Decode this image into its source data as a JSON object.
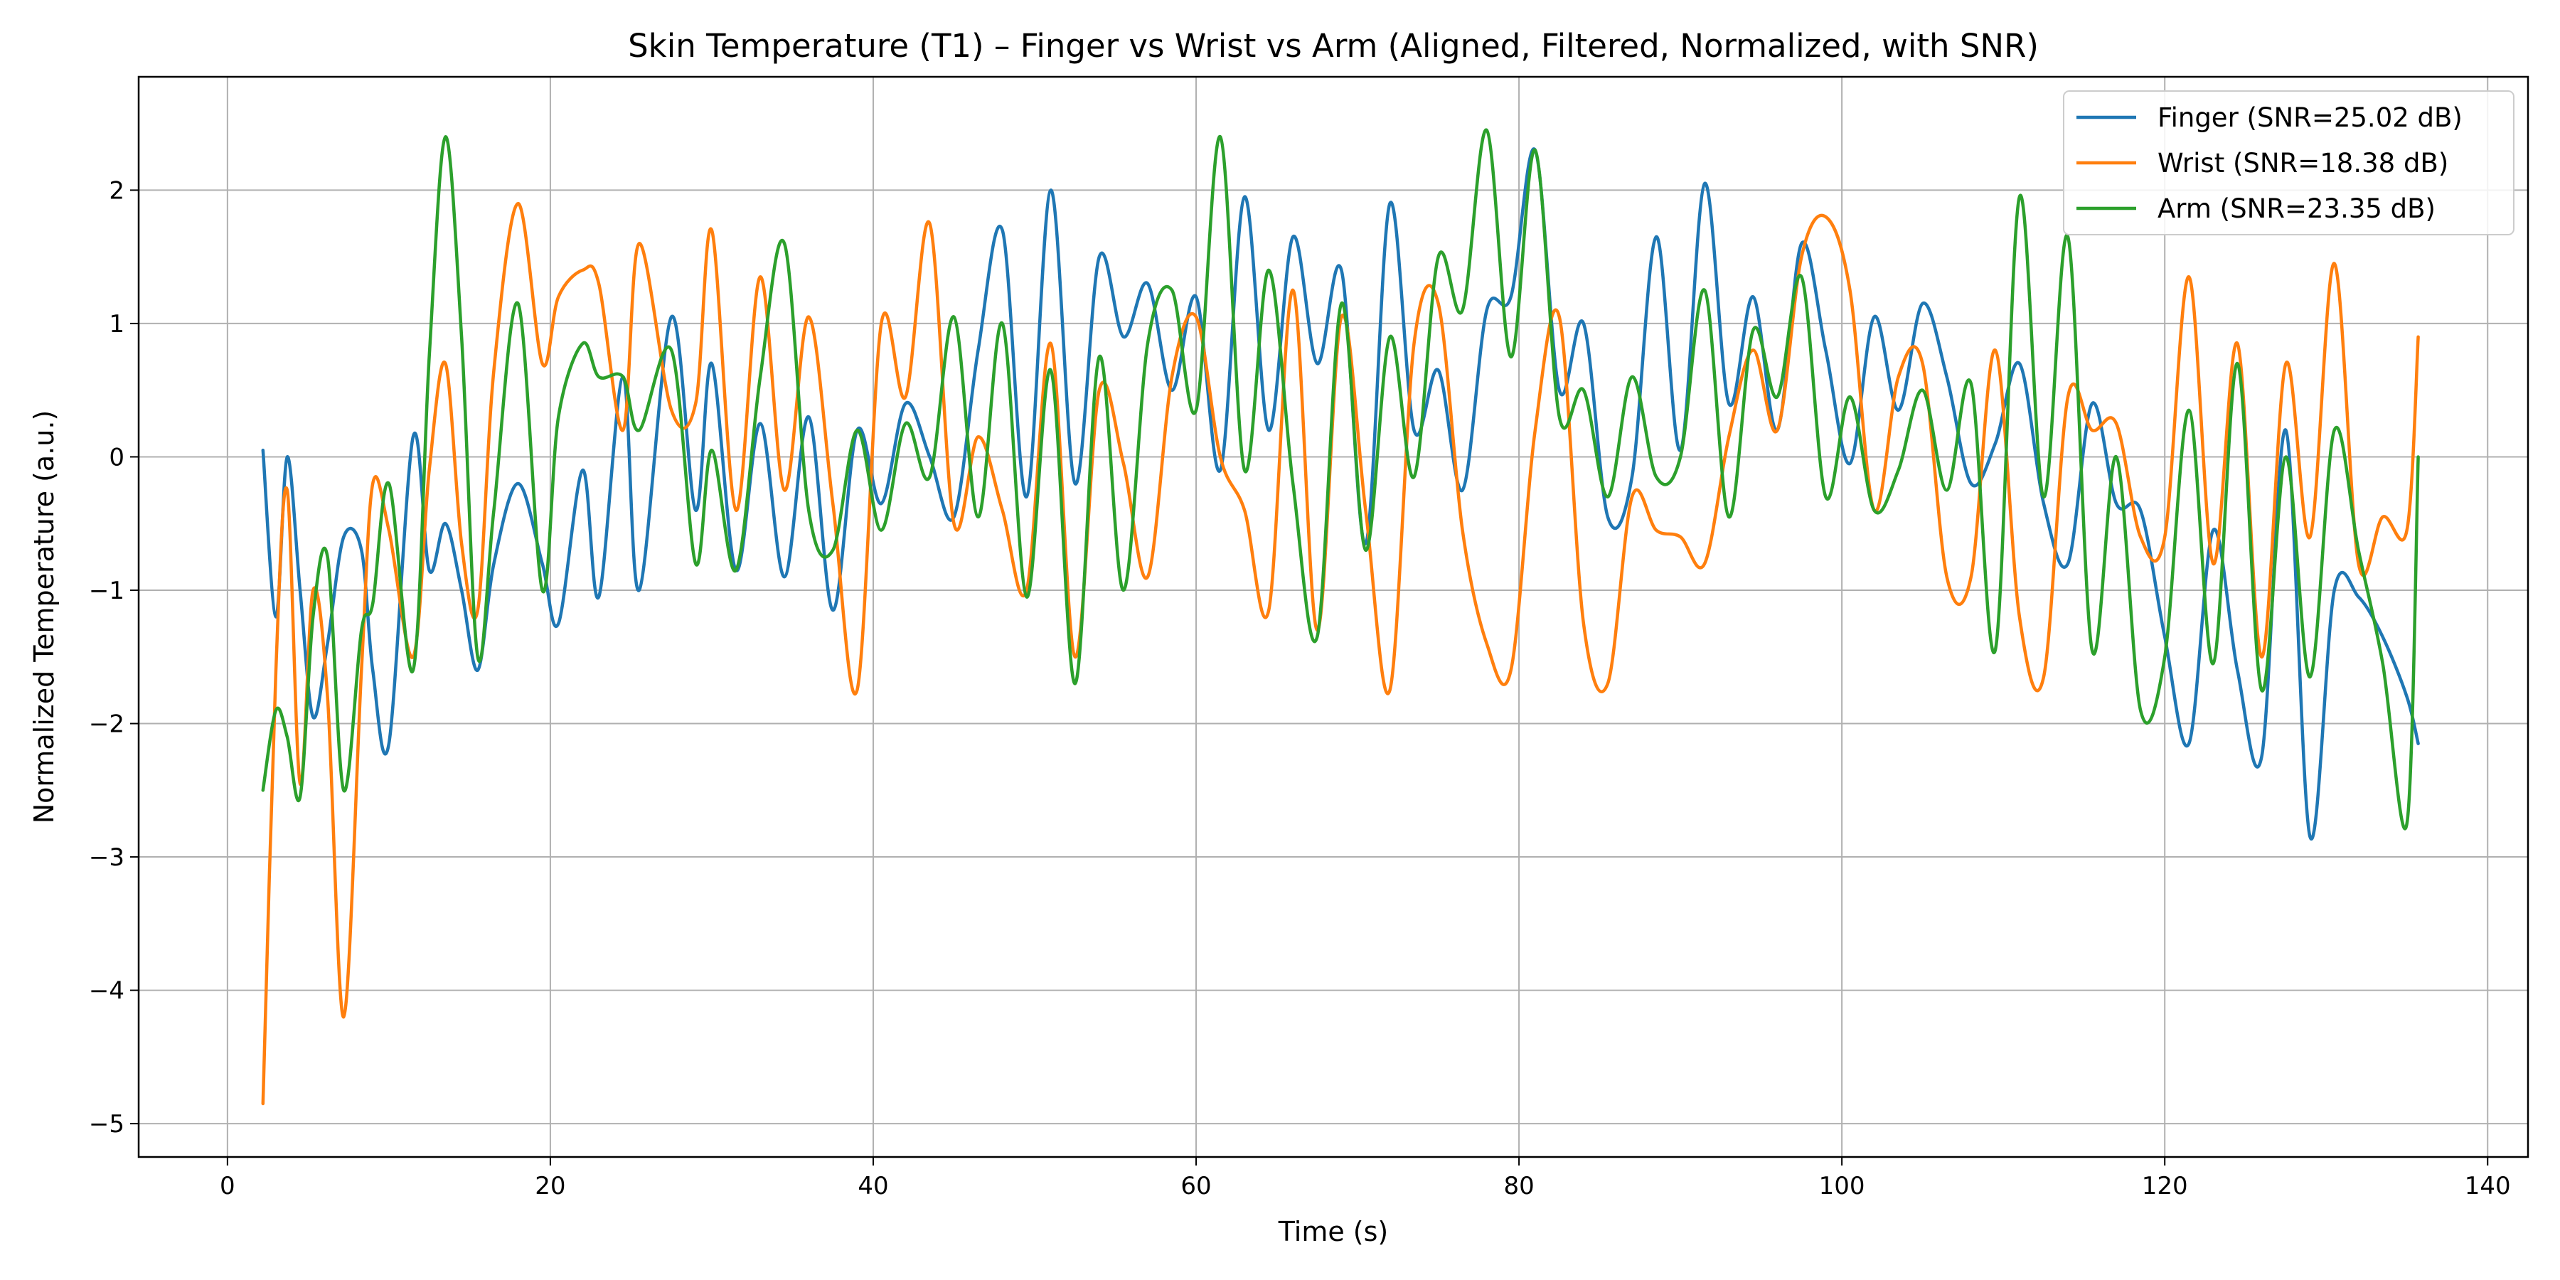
{
  "chart_data": {
    "type": "line",
    "title": "Skin Temperature (T1) – Finger vs Wrist vs Arm (Aligned, Filtered, Normalized, with SNR)",
    "xlabel": "Time (s)",
    "ylabel": "Normalized Temperature (a.u.)",
    "xlim": [
      -5.5,
      142.5
    ],
    "ylim": [
      -5.25,
      2.85
    ],
    "x_ticks": [
      0,
      20,
      40,
      60,
      80,
      100,
      120,
      140
    ],
    "x_tick_labels": [
      "0",
      "20",
      "40",
      "60",
      "80",
      "100",
      "120",
      "140"
    ],
    "y_ticks": [
      -5,
      -4,
      -3,
      -2,
      -1,
      0,
      1,
      2
    ],
    "y_tick_labels": [
      "−5",
      "−4",
      "−3",
      "−2",
      "−1",
      "0",
      "1",
      "2"
    ],
    "grid": true,
    "legend_position": "top-right",
    "x": [
      2.2,
      3.0,
      3.7,
      4.5,
      5.3,
      6.2,
      7.2,
      8.3,
      9.0,
      10.0,
      11.5,
      12.5,
      13.5,
      14.5,
      15.5,
      16.5,
      18.0,
      19.5,
      20.5,
      22.0,
      23.0,
      24.5,
      25.5,
      27.5,
      29.0,
      30.0,
      31.5,
      33.0,
      34.5,
      36.0,
      37.5,
      39.0,
      40.5,
      42.0,
      43.5,
      45.0,
      46.5,
      48.0,
      49.5,
      51.0,
      52.5,
      54.0,
      55.5,
      57.0,
      58.5,
      60.0,
      61.5,
      63.0,
      64.5,
      66.0,
      67.5,
      69.0,
      70.5,
      72.0,
      73.5,
      75.0,
      76.5,
      78.0,
      79.5,
      81.0,
      82.5,
      84.0,
      85.5,
      87.0,
      88.5,
      90.0,
      91.5,
      93.0,
      94.5,
      96.0,
      97.5,
      99.0,
      100.5,
      102.0,
      103.5,
      105.0,
      106.5,
      108.0,
      109.5,
      111.0,
      112.5,
      114.0,
      115.5,
      117.0,
      118.5,
      120.0,
      121.5,
      123.0,
      124.5,
      126.0,
      127.5,
      129.0,
      130.5,
      132.0,
      133.5,
      135.0,
      135.7
    ],
    "series": [
      {
        "name": "Finger (SNR=25.02 dB)",
        "color": "#1f77b4",
        "values": [
          0.05,
          -1.2,
          0.0,
          -1.0,
          -1.95,
          -1.4,
          -0.6,
          -0.7,
          -1.6,
          -2.15,
          0.15,
          -0.85,
          -0.5,
          -1.0,
          -1.6,
          -0.8,
          -0.2,
          -0.8,
          -1.25,
          -0.1,
          -1.05,
          0.6,
          -1.0,
          1.05,
          -0.4,
          0.7,
          -0.85,
          0.25,
          -0.9,
          0.3,
          -1.15,
          0.2,
          -0.35,
          0.4,
          0.0,
          -0.45,
          0.8,
          1.7,
          -0.3,
          2.0,
          -0.2,
          1.5,
          0.9,
          1.3,
          0.5,
          1.2,
          -0.1,
          1.95,
          0.2,
          1.65,
          0.7,
          1.4,
          -0.65,
          1.9,
          0.2,
          0.65,
          -0.25,
          1.1,
          1.2,
          2.3,
          0.5,
          1.0,
          -0.45,
          -0.15,
          1.65,
          0.05,
          2.05,
          0.4,
          1.2,
          0.2,
          1.6,
          0.8,
          -0.05,
          1.05,
          0.35,
          1.15,
          0.6,
          -0.2,
          0.1,
          0.7,
          -0.35,
          -0.8,
          0.4,
          -0.35,
          -0.4,
          -1.35,
          -2.15,
          -0.55,
          -1.6,
          -2.25,
          0.2,
          -2.85,
          -1.0,
          -1.05,
          -1.35,
          -1.8,
          -2.15
        ]
      },
      {
        "name": "Wrist (SNR=18.38 dB)",
        "color": "#ff7f0e",
        "values": [
          -4.85,
          -1.6,
          -0.25,
          -2.45,
          -1.0,
          -1.8,
          -4.2,
          -1.6,
          -0.2,
          -0.55,
          -1.5,
          -0.1,
          0.7,
          -0.65,
          -1.15,
          0.65,
          1.9,
          0.7,
          1.2,
          1.4,
          1.3,
          0.2,
          1.6,
          0.35,
          0.4,
          1.7,
          -0.4,
          1.35,
          -0.25,
          1.05,
          -0.35,
          -1.75,
          1.0,
          0.45,
          1.75,
          -0.5,
          0.15,
          -0.4,
          -1.0,
          0.85,
          -1.5,
          0.5,
          -0.05,
          -0.9,
          0.6,
          1.05,
          0.0,
          -0.4,
          -1.15,
          1.25,
          -1.3,
          1.05,
          -0.4,
          -1.75,
          0.85,
          1.15,
          -0.55,
          -1.4,
          -1.6,
          0.2,
          1.05,
          -1.25,
          -1.7,
          -0.3,
          -0.55,
          -0.6,
          -0.8,
          0.15,
          0.8,
          0.2,
          1.5,
          1.8,
          1.25,
          -0.4,
          0.6,
          0.7,
          -0.9,
          -0.9,
          0.8,
          -1.2,
          -1.65,
          0.45,
          0.2,
          0.25,
          -0.6,
          -0.6,
          1.35,
          -0.8,
          0.85,
          -1.5,
          0.7,
          -0.6,
          1.45,
          -0.8,
          -0.45,
          -0.55,
          0.9
        ]
      },
      {
        "name": "Arm (SNR=23.35 dB)",
        "color": "#2ca02c",
        "values": [
          -2.5,
          -1.9,
          -2.1,
          -2.55,
          -1.2,
          -0.75,
          -2.5,
          -1.3,
          -1.1,
          -0.2,
          -1.6,
          0.75,
          2.4,
          0.9,
          -1.5,
          -0.4,
          1.15,
          -1.0,
          0.3,
          0.85,
          0.6,
          0.6,
          0.2,
          0.8,
          -0.8,
          0.05,
          -0.85,
          0.6,
          1.6,
          -0.4,
          -0.7,
          0.2,
          -0.55,
          0.25,
          -0.15,
          1.05,
          -0.45,
          1.0,
          -1.05,
          0.65,
          -1.7,
          0.75,
          -1.0,
          0.85,
          1.25,
          0.35,
          2.4,
          -0.1,
          1.4,
          -0.2,
          -1.35,
          1.15,
          -0.7,
          0.9,
          -0.15,
          1.5,
          1.1,
          2.45,
          0.75,
          2.3,
          0.3,
          0.5,
          -0.3,
          0.6,
          -0.15,
          0.0,
          1.25,
          -0.45,
          0.95,
          0.45,
          1.35,
          -0.3,
          0.45,
          -0.4,
          -0.1,
          0.5,
          -0.25,
          0.55,
          -1.45,
          1.95,
          -0.3,
          1.65,
          -1.45,
          0.0,
          -1.9,
          -1.5,
          0.35,
          -1.55,
          0.7,
          -1.75,
          0.0,
          -1.65,
          0.2,
          -0.7,
          -1.55,
          -2.75,
          0.0
        ]
      }
    ]
  }
}
